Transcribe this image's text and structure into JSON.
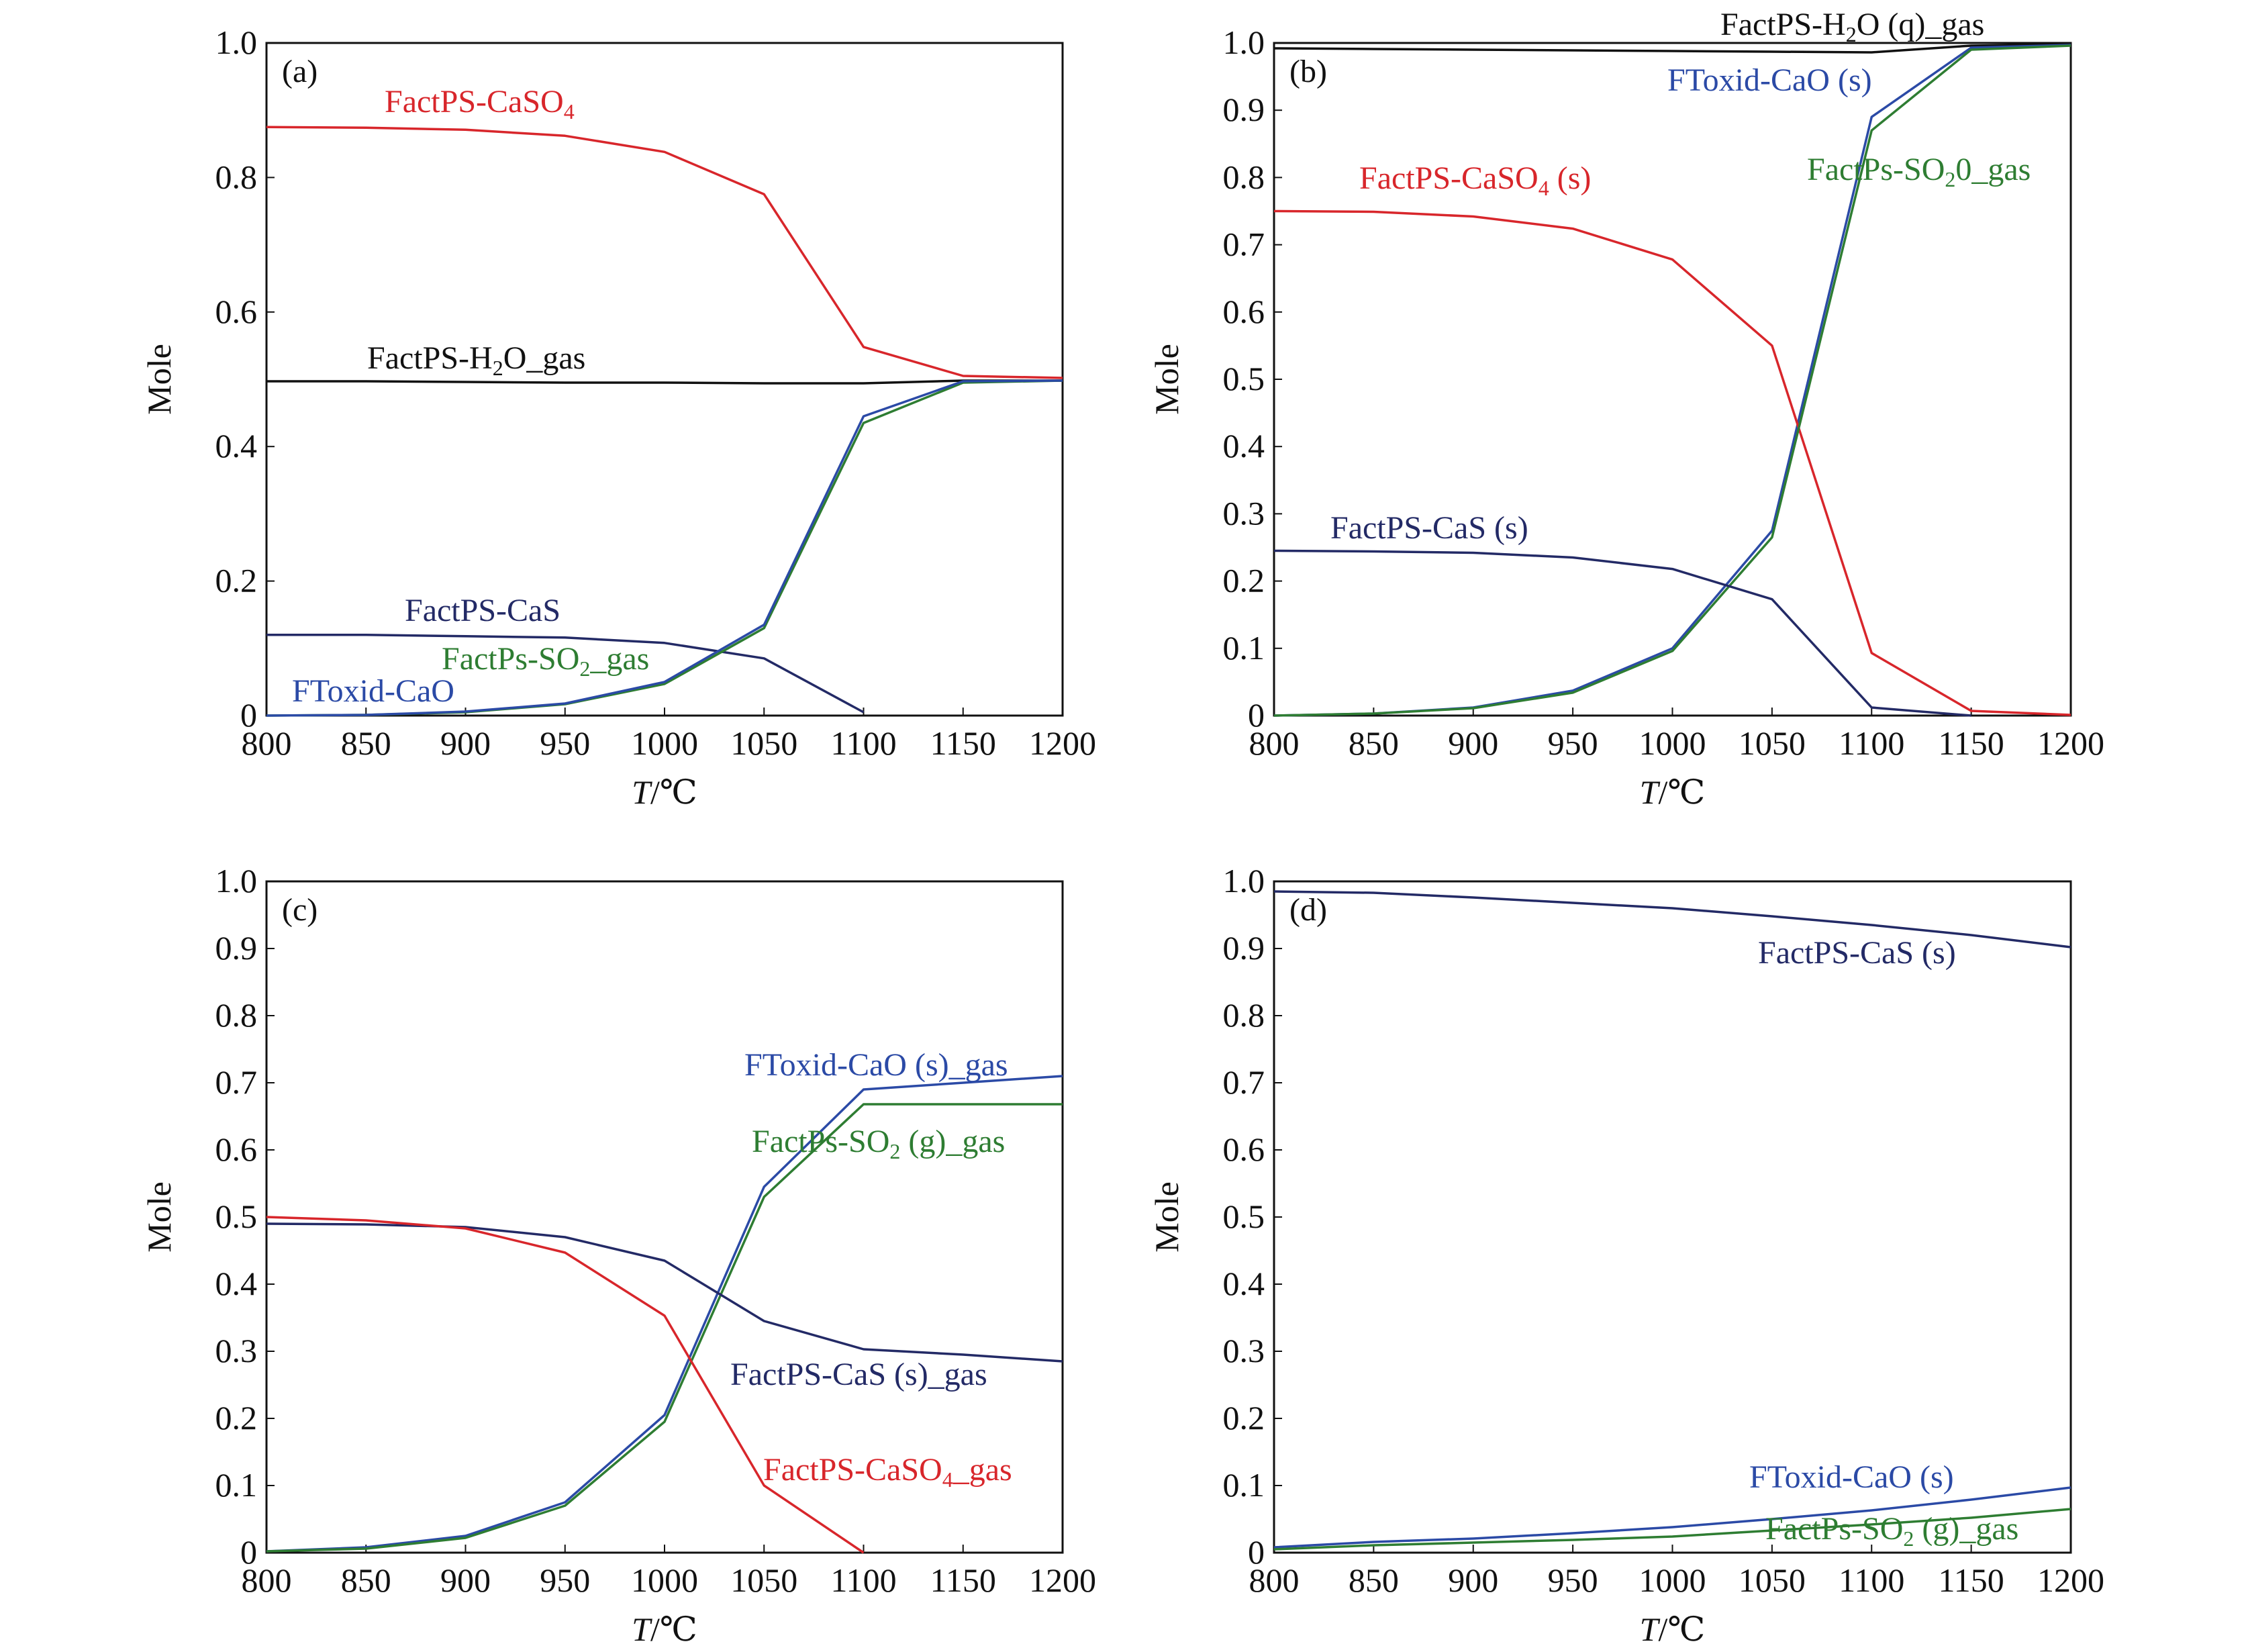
{
  "chart_data": [
    {
      "type": "line",
      "panel_label": "(a)",
      "xlabel": {
        "var": "T",
        "unit": "/℃"
      },
      "ylabel": "Mole",
      "xlim": [
        800,
        1200
      ],
      "ylim": [
        0,
        1.0
      ],
      "x": [
        800,
        850,
        900,
        950,
        1000,
        1050,
        1100,
        1150,
        1200
      ],
      "xticks": [
        "800",
        "850",
        "900",
        "950",
        "1000",
        "1050",
        "1100",
        "1150",
        "1200"
      ],
      "yticks": [
        {
          "v": 0,
          "t": "0"
        },
        {
          "v": 0.2,
          "t": "0.2"
        },
        {
          "v": 0.4,
          "t": "0.4"
        },
        {
          "v": 0.6,
          "t": "0.6"
        },
        {
          "v": 0.8,
          "t": "0.8"
        },
        {
          "v": 1.0,
          "t": "1.0"
        }
      ],
      "series": [
        {
          "name": {
            "main": "FactPS-CaSO",
            "sub": "4",
            "tail": ""
          },
          "color": "#d8262b",
          "values": [
            0.875,
            0.874,
            0.871,
            0.862,
            0.838,
            0.775,
            0.548,
            0.505,
            0.502
          ]
        },
        {
          "name": {
            "main": "FactPS-H",
            "sub": "2",
            "tail": "O_gas"
          },
          "color": "#111111",
          "values": [
            0.497,
            0.497,
            0.496,
            0.495,
            0.495,
            0.494,
            0.494,
            0.498,
            0.498
          ]
        },
        {
          "name": {
            "main": "FactPS-CaS",
            "sub": "",
            "tail": ""
          },
          "color": "#232a66",
          "values": [
            0.12,
            0.12,
            0.118,
            0.116,
            0.108,
            0.085,
            0.005,
            null,
            null
          ]
        },
        {
          "name": {
            "main": "FactPs-SO",
            "sub": "2",
            "tail": "_gas"
          },
          "color": "#2e7d32",
          "values": [
            0,
            0.001,
            0.005,
            0.017,
            0.047,
            0.13,
            0.435,
            0.495,
            0.498
          ]
        },
        {
          "name": {
            "main": "FToxid-CaO",
            "sub": "",
            "tail": ""
          },
          "color": "#2b4aa6",
          "values": [
            0,
            0.001,
            0.006,
            0.018,
            0.05,
            0.135,
            0.445,
            0.497,
            0.498
          ]
        }
      ]
    },
    {
      "type": "line",
      "panel_label": "(b)",
      "xlabel": {
        "var": "T",
        "unit": "/℃"
      },
      "ylabel": "Mole",
      "xlim": [
        800,
        1200
      ],
      "ylim": [
        0,
        1.0
      ],
      "x": [
        800,
        850,
        900,
        950,
        1000,
        1050,
        1100,
        1150,
        1200
      ],
      "xticks": [
        "800",
        "850",
        "900",
        "950",
        "1000",
        "1050",
        "1100",
        "1150",
        "1200"
      ],
      "yticks": [
        {
          "v": 0,
          "t": "0"
        },
        {
          "v": 0.1,
          "t": "0.1"
        },
        {
          "v": 0.2,
          "t": "0.2"
        },
        {
          "v": 0.3,
          "t": "0.3"
        },
        {
          "v": 0.4,
          "t": "0.4"
        },
        {
          "v": 0.5,
          "t": "0.5"
        },
        {
          "v": 0.6,
          "t": "0.6"
        },
        {
          "v": 0.7,
          "t": "0.7"
        },
        {
          "v": 0.8,
          "t": "0.8"
        },
        {
          "v": 0.9,
          "t": "0.9"
        },
        {
          "v": 1.0,
          "t": "1.0"
        }
      ],
      "series": [
        {
          "name": {
            "main": "FactPS-H",
            "sub": "2",
            "tail": "O (q)_gas"
          },
          "color": "#111111",
          "values": [
            0.992,
            0.991,
            0.99,
            0.989,
            0.988,
            0.987,
            0.986,
            0.996,
            0.998
          ]
        },
        {
          "name": {
            "main": "FToxid-CaO (s)",
            "sub": "",
            "tail": ""
          },
          "color": "#2b4aa6",
          "values": [
            0,
            0.003,
            0.012,
            0.037,
            0.1,
            0.275,
            0.89,
            0.993,
            0.997
          ]
        },
        {
          "name": {
            "main": "FactPS-CaSO",
            "sub": "4",
            "tail": " (s)"
          },
          "color": "#d8262b",
          "values": [
            0.75,
            0.749,
            0.742,
            0.724,
            0.678,
            0.55,
            0.093,
            0.007,
            0.001
          ]
        },
        {
          "name": {
            "main": "FactPs-SO",
            "sub": "2",
            "tail": "0_gas"
          },
          "color": "#2e7d32",
          "values": [
            0,
            0.003,
            0.011,
            0.034,
            0.096,
            0.265,
            0.87,
            0.99,
            0.996
          ]
        },
        {
          "name": {
            "main": "FactPS-CaS (s)",
            "sub": "",
            "tail": ""
          },
          "color": "#232a66",
          "values": [
            0.245,
            0.244,
            0.242,
            0.235,
            0.218,
            0.173,
            0.012,
            0,
            null
          ]
        }
      ]
    },
    {
      "type": "line",
      "panel_label": "(c)",
      "xlabel": {
        "var": "T",
        "unit": "/℃"
      },
      "ylabel": "Mole",
      "xlim": [
        800,
        1200
      ],
      "ylim": [
        0,
        1.0
      ],
      "x": [
        800,
        850,
        900,
        950,
        1000,
        1050,
        1100,
        1150,
        1200
      ],
      "xticks": [
        "800",
        "850",
        "900",
        "950",
        "1000",
        "1050",
        "1100",
        "1150",
        "1200"
      ],
      "yticks": [
        {
          "v": 0,
          "t": "0"
        },
        {
          "v": 0.1,
          "t": "0.1"
        },
        {
          "v": 0.2,
          "t": "0.2"
        },
        {
          "v": 0.3,
          "t": "0.3"
        },
        {
          "v": 0.4,
          "t": "0.4"
        },
        {
          "v": 0.5,
          "t": "0.5"
        },
        {
          "v": 0.6,
          "t": "0.6"
        },
        {
          "v": 0.7,
          "t": "0.7"
        },
        {
          "v": 0.8,
          "t": "0.8"
        },
        {
          "v": 0.9,
          "t": "0.9"
        },
        {
          "v": 1.0,
          "t": "1.0"
        }
      ],
      "series": [
        {
          "name": {
            "main": "FToxid-CaO (s)_gas",
            "sub": "",
            "tail": ""
          },
          "color": "#2b4aa6",
          "values": [
            0.002,
            0.008,
            0.025,
            0.075,
            0.205,
            0.545,
            0.69,
            0.7,
            0.71
          ]
        },
        {
          "name": {
            "main": "FactPs-SO",
            "sub": "2",
            "tail": " (g)_gas"
          },
          "color": "#2e7d32",
          "values": [
            0.002,
            0.006,
            0.022,
            0.07,
            0.195,
            0.53,
            0.668,
            0.668,
            0.668
          ]
        },
        {
          "name": {
            "main": "FactPS-CaS (s)_gas",
            "sub": "",
            "tail": ""
          },
          "color": "#232a66",
          "values": [
            0.49,
            0.489,
            0.485,
            0.47,
            0.435,
            0.345,
            0.303,
            0.295,
            0.285
          ]
        },
        {
          "name": {
            "main": "FactPS-CaSO",
            "sub": "4",
            "tail": "_gas"
          },
          "color": "#d8262b",
          "values": [
            0.5,
            0.495,
            0.483,
            0.447,
            0.353,
            0.1,
            0,
            null,
            null
          ]
        }
      ]
    },
    {
      "type": "line",
      "panel_label": "(d)",
      "xlabel": {
        "var": "T",
        "unit": "/℃"
      },
      "ylabel": "Mole",
      "xlim": [
        800,
        1200
      ],
      "ylim": [
        0,
        1.0
      ],
      "x": [
        800,
        850,
        900,
        950,
        1000,
        1050,
        1100,
        1150,
        1200
      ],
      "xticks": [
        "800",
        "850",
        "900",
        "950",
        "1000",
        "1050",
        "1100",
        "1150",
        "1200"
      ],
      "yticks": [
        {
          "v": 0,
          "t": "0"
        },
        {
          "v": 0.1,
          "t": "0.1"
        },
        {
          "v": 0.2,
          "t": "0.2"
        },
        {
          "v": 0.3,
          "t": "0.3"
        },
        {
          "v": 0.4,
          "t": "0.4"
        },
        {
          "v": 0.5,
          "t": "0.5"
        },
        {
          "v": 0.6,
          "t": "0.6"
        },
        {
          "v": 0.7,
          "t": "0.7"
        },
        {
          "v": 0.8,
          "t": "0.8"
        },
        {
          "v": 0.9,
          "t": "0.9"
        },
        {
          "v": 1.0,
          "t": "1.0"
        }
      ],
      "series": [
        {
          "name": {
            "main": "FactPS-CaS (s)",
            "sub": "",
            "tail": ""
          },
          "color": "#232a66",
          "values": [
            0.985,
            0.983,
            0.976,
            0.968,
            0.96,
            0.948,
            0.935,
            0.92,
            0.902
          ]
        },
        {
          "name": {
            "main": "FToxid-CaO (s)",
            "sub": "",
            "tail": ""
          },
          "color": "#2b4aa6",
          "values": [
            0.008,
            0.016,
            0.021,
            0.029,
            0.038,
            0.05,
            0.063,
            0.079,
            0.097
          ]
        },
        {
          "name": {
            "main": "FactPs-SO",
            "sub": "2",
            "tail": " (g)_gas"
          },
          "color": "#2e7d32",
          "values": [
            0.005,
            0.011,
            0.015,
            0.019,
            0.024,
            0.033,
            0.042,
            0.052,
            0.065
          ]
        }
      ]
    }
  ]
}
